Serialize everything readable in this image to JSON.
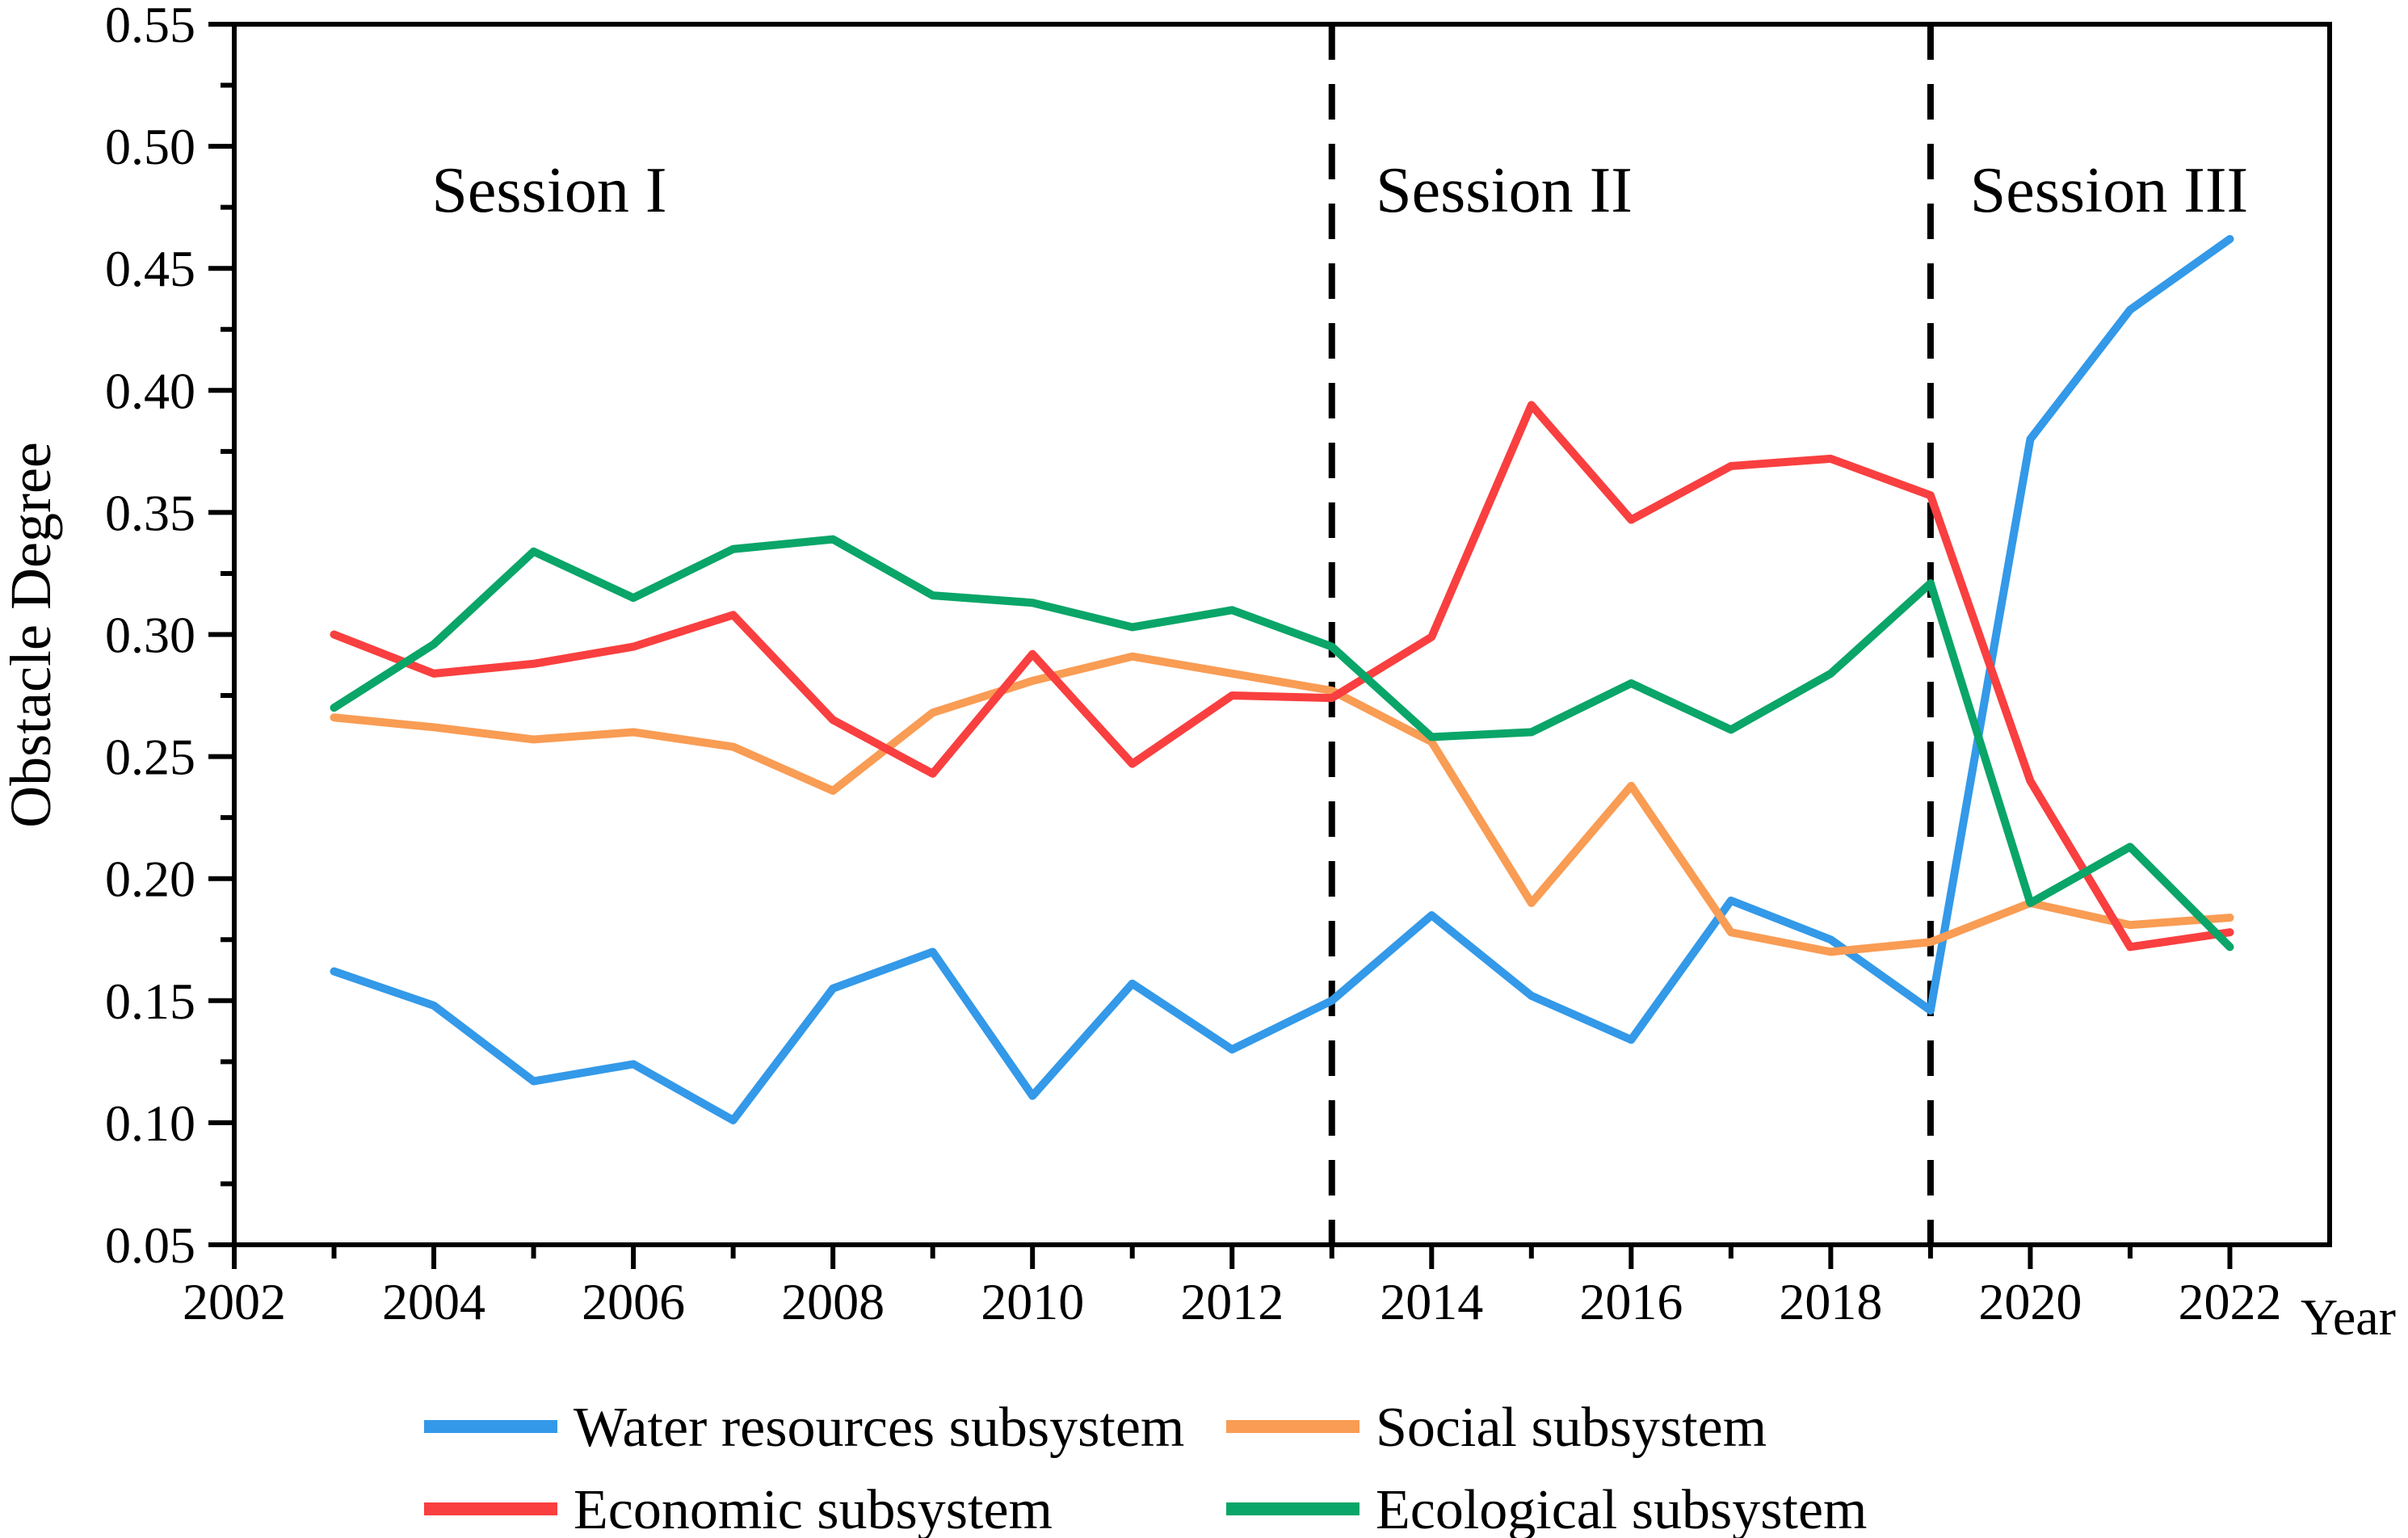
{
  "figure": {
    "background": "#ffffff"
  },
  "axes": {
    "x_label": "Year",
    "y_label": "Obstacle Degree",
    "x_major": [
      2002,
      2004,
      2006,
      2008,
      2010,
      2012,
      2014,
      2016,
      2018,
      2020,
      2022
    ],
    "x_tick_labels": [
      "2002",
      "2004",
      "2006",
      "2008",
      "2010",
      "2012",
      "2014",
      "2016",
      "2018",
      "2020",
      "2022"
    ],
    "x_minor": [
      2003,
      2005,
      2007,
      2009,
      2011,
      2013,
      2015,
      2017,
      2019,
      2021
    ],
    "y_major": [
      0.05,
      0.1,
      0.15,
      0.2,
      0.25,
      0.3,
      0.35,
      0.4,
      0.45,
      0.5,
      0.55
    ],
    "y_tick_labels": [
      "0.05",
      "0.10",
      "0.15",
      "0.20",
      "0.25",
      "0.30",
      "0.35",
      "0.40",
      "0.45",
      "0.50",
      "0.55"
    ],
    "y_minor": [
      0.075,
      0.125,
      0.175,
      0.225,
      0.275,
      0.325,
      0.375,
      0.425,
      0.475,
      0.525
    ]
  },
  "sessions": [
    {
      "label": "Session I"
    },
    {
      "label": "Session II",
      "divider_year": 2013
    },
    {
      "label": "Session III",
      "divider_year": 2019
    }
  ],
  "legend": {
    "entries": [
      {
        "label": "Water resources subsystem",
        "color": "#3399E8"
      },
      {
        "label": "Social subsystem",
        "color": "#F99C54"
      },
      {
        "label": "Economic subsystem",
        "color": "#F93F3F"
      },
      {
        "label": "Ecological subsystem",
        "color": "#0AA568"
      }
    ]
  },
  "chart_data": {
    "type": "line",
    "title": "",
    "xlabel": "Year",
    "ylabel": "Obstacle Degree",
    "x": [
      2003,
      2004,
      2005,
      2006,
      2007,
      2008,
      2009,
      2010,
      2011,
      2012,
      2013,
      2014,
      2015,
      2016,
      2017,
      2018,
      2019,
      2020,
      2021,
      2022
    ],
    "xlim": [
      2002,
      2023
    ],
    "ylim": [
      0.05,
      0.55
    ],
    "grid": false,
    "legend_position": "bottom",
    "series": [
      {
        "key": "water-resources",
        "name": "Water resources subsystem",
        "color": "#3399E8",
        "values": [
          0.162,
          0.148,
          0.117,
          0.124,
          0.101,
          0.155,
          0.17,
          0.111,
          0.157,
          0.13,
          0.15,
          0.185,
          0.152,
          0.134,
          0.191,
          0.175,
          0.146,
          0.38,
          0.433,
          0.462
        ]
      },
      {
        "key": "social",
        "name": "Social subsystem",
        "color": "#F99C54",
        "values": [
          0.266,
          0.262,
          0.257,
          0.26,
          0.254,
          0.236,
          0.268,
          0.281,
          0.291,
          0.284,
          0.277,
          0.256,
          0.19,
          0.238,
          0.178,
          0.17,
          0.174,
          0.19,
          0.181,
          0.184
        ]
      },
      {
        "key": "economic",
        "name": "Economic subsystem",
        "color": "#F93F3F",
        "values": [
          0.3,
          0.284,
          0.288,
          0.295,
          0.308,
          0.265,
          0.243,
          0.292,
          0.247,
          0.275,
          0.274,
          0.299,
          0.394,
          0.347,
          0.369,
          0.372,
          0.357,
          0.24,
          0.172,
          0.178
        ]
      },
      {
        "key": "ecological",
        "name": "Ecological subsystem",
        "color": "#0AA568",
        "values": [
          0.27,
          0.296,
          0.334,
          0.315,
          0.335,
          0.339,
          0.316,
          0.313,
          0.303,
          0.31,
          0.295,
          0.258,
          0.26,
          0.28,
          0.261,
          0.284,
          0.321,
          0.19,
          0.213,
          0.172
        ]
      }
    ]
  }
}
